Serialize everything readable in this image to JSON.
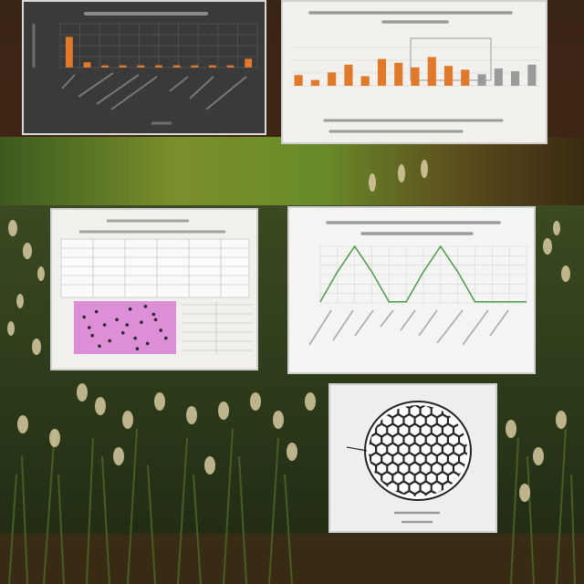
{
  "colors": {
    "dark_panel_bg": "#3a3a3a",
    "panel_bg": "#f2f0ec",
    "bar_orange": "#e07a2a",
    "line_green": "#4f9a4a",
    "scatter_pink": "#dc8ed6",
    "grass_dark": "#2e3a1c",
    "wood_brown": "#5a3518"
  },
  "icons": {
    "hexmesh": "hexagon-mesh-oval-icon"
  },
  "chart_data": [
    {
      "type": "bar",
      "values": [
        0.7,
        0.12,
        0.05,
        0.05,
        0.05,
        0.05,
        0.05,
        0.05,
        0.05,
        0.05,
        0.2
      ],
      "ylim": [
        0,
        1
      ],
      "grid": true
    },
    {
      "type": "bar",
      "values": [
        0.28,
        0.15,
        0.35,
        0.55,
        0.25,
        0.7,
        0.6,
        0.48,
        0.75,
        0.52,
        0.42,
        0.3,
        0.45,
        0.38,
        0.55
      ],
      "ylim": [
        0,
        1
      ],
      "grid": true
    },
    {
      "type": "line",
      "x": [
        0,
        1,
        2,
        3,
        4,
        5,
        6,
        7,
        8,
        9,
        10,
        11,
        12
      ],
      "values": [
        0.02,
        0.55,
        1.0,
        0.55,
        0.02,
        0.02,
        0.55,
        1.0,
        0.55,
        0.02,
        0.02,
        0.02,
        0.02
      ],
      "ylim": [
        0,
        1
      ],
      "grid": true
    },
    {
      "type": "scatter",
      "x": [
        0.1,
        0.18,
        0.22,
        0.3,
        0.35,
        0.42,
        0.48,
        0.55,
        0.6,
        0.66,
        0.72,
        0.78,
        0.85,
        0.9,
        0.25,
        0.52,
        0.7,
        0.15,
        0.62,
        0.8
      ],
      "values": [
        0.7,
        0.35,
        0.8,
        0.55,
        0.25,
        0.65,
        0.4,
        0.85,
        0.3,
        0.6,
        0.2,
        0.75,
        0.45,
        0.3,
        0.15,
        0.55,
        0.9,
        0.5,
        0.1,
        0.65
      ],
      "xlim": [
        0,
        1
      ],
      "ylim": [
        0,
        1
      ]
    }
  ]
}
